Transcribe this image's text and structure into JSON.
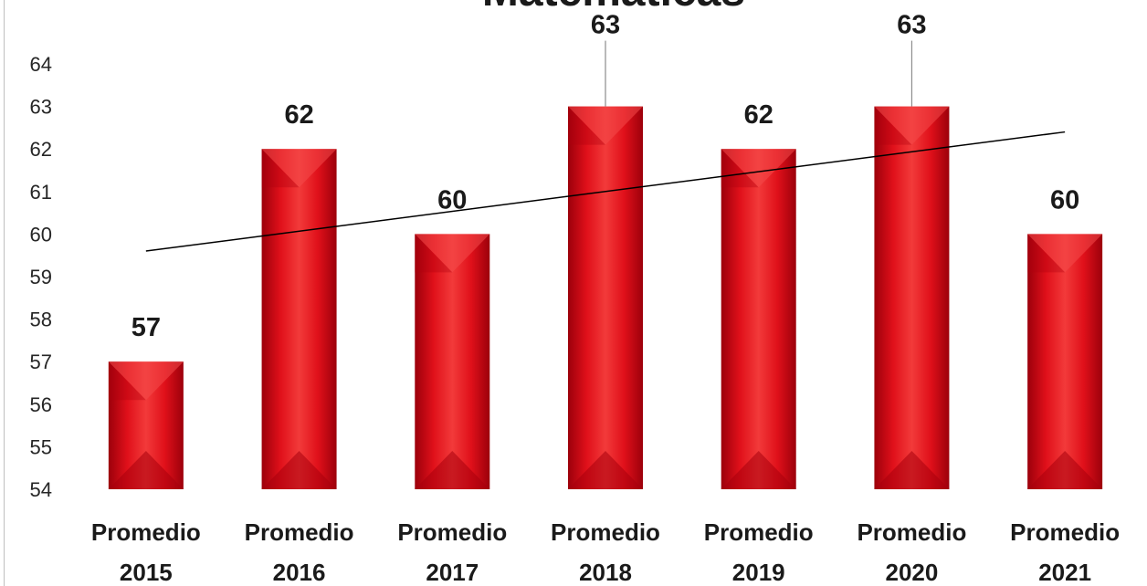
{
  "chart_data": {
    "type": "bar",
    "title": "Matemáticas",
    "categories": [
      [
        "Promedio",
        "2015"
      ],
      [
        "Promedio",
        "2016"
      ],
      [
        "Promedio",
        "2017"
      ],
      [
        "Promedio",
        "2018"
      ],
      [
        "Promedio",
        "2019"
      ],
      [
        "Promedio",
        "2020"
      ],
      [
        "Promedio",
        "2021"
      ]
    ],
    "values": [
      57,
      62,
      60,
      63,
      62,
      63,
      60
    ],
    "data_labels": [
      "57",
      "62",
      "60",
      "63",
      "62",
      "63",
      "60"
    ],
    "ylim": [
      54,
      64
    ],
    "y_ticks": [
      "54",
      "55",
      "56",
      "57",
      "58",
      "59",
      "60",
      "61",
      "62",
      "63",
      "64"
    ],
    "trendline": {
      "type": "linear",
      "start": 59.6,
      "end": 62.4
    },
    "grid": false,
    "legend": "none",
    "bar_color": "#e0101a",
    "bar_dark_color": "#a8000c",
    "trendline_color": "#000000"
  }
}
